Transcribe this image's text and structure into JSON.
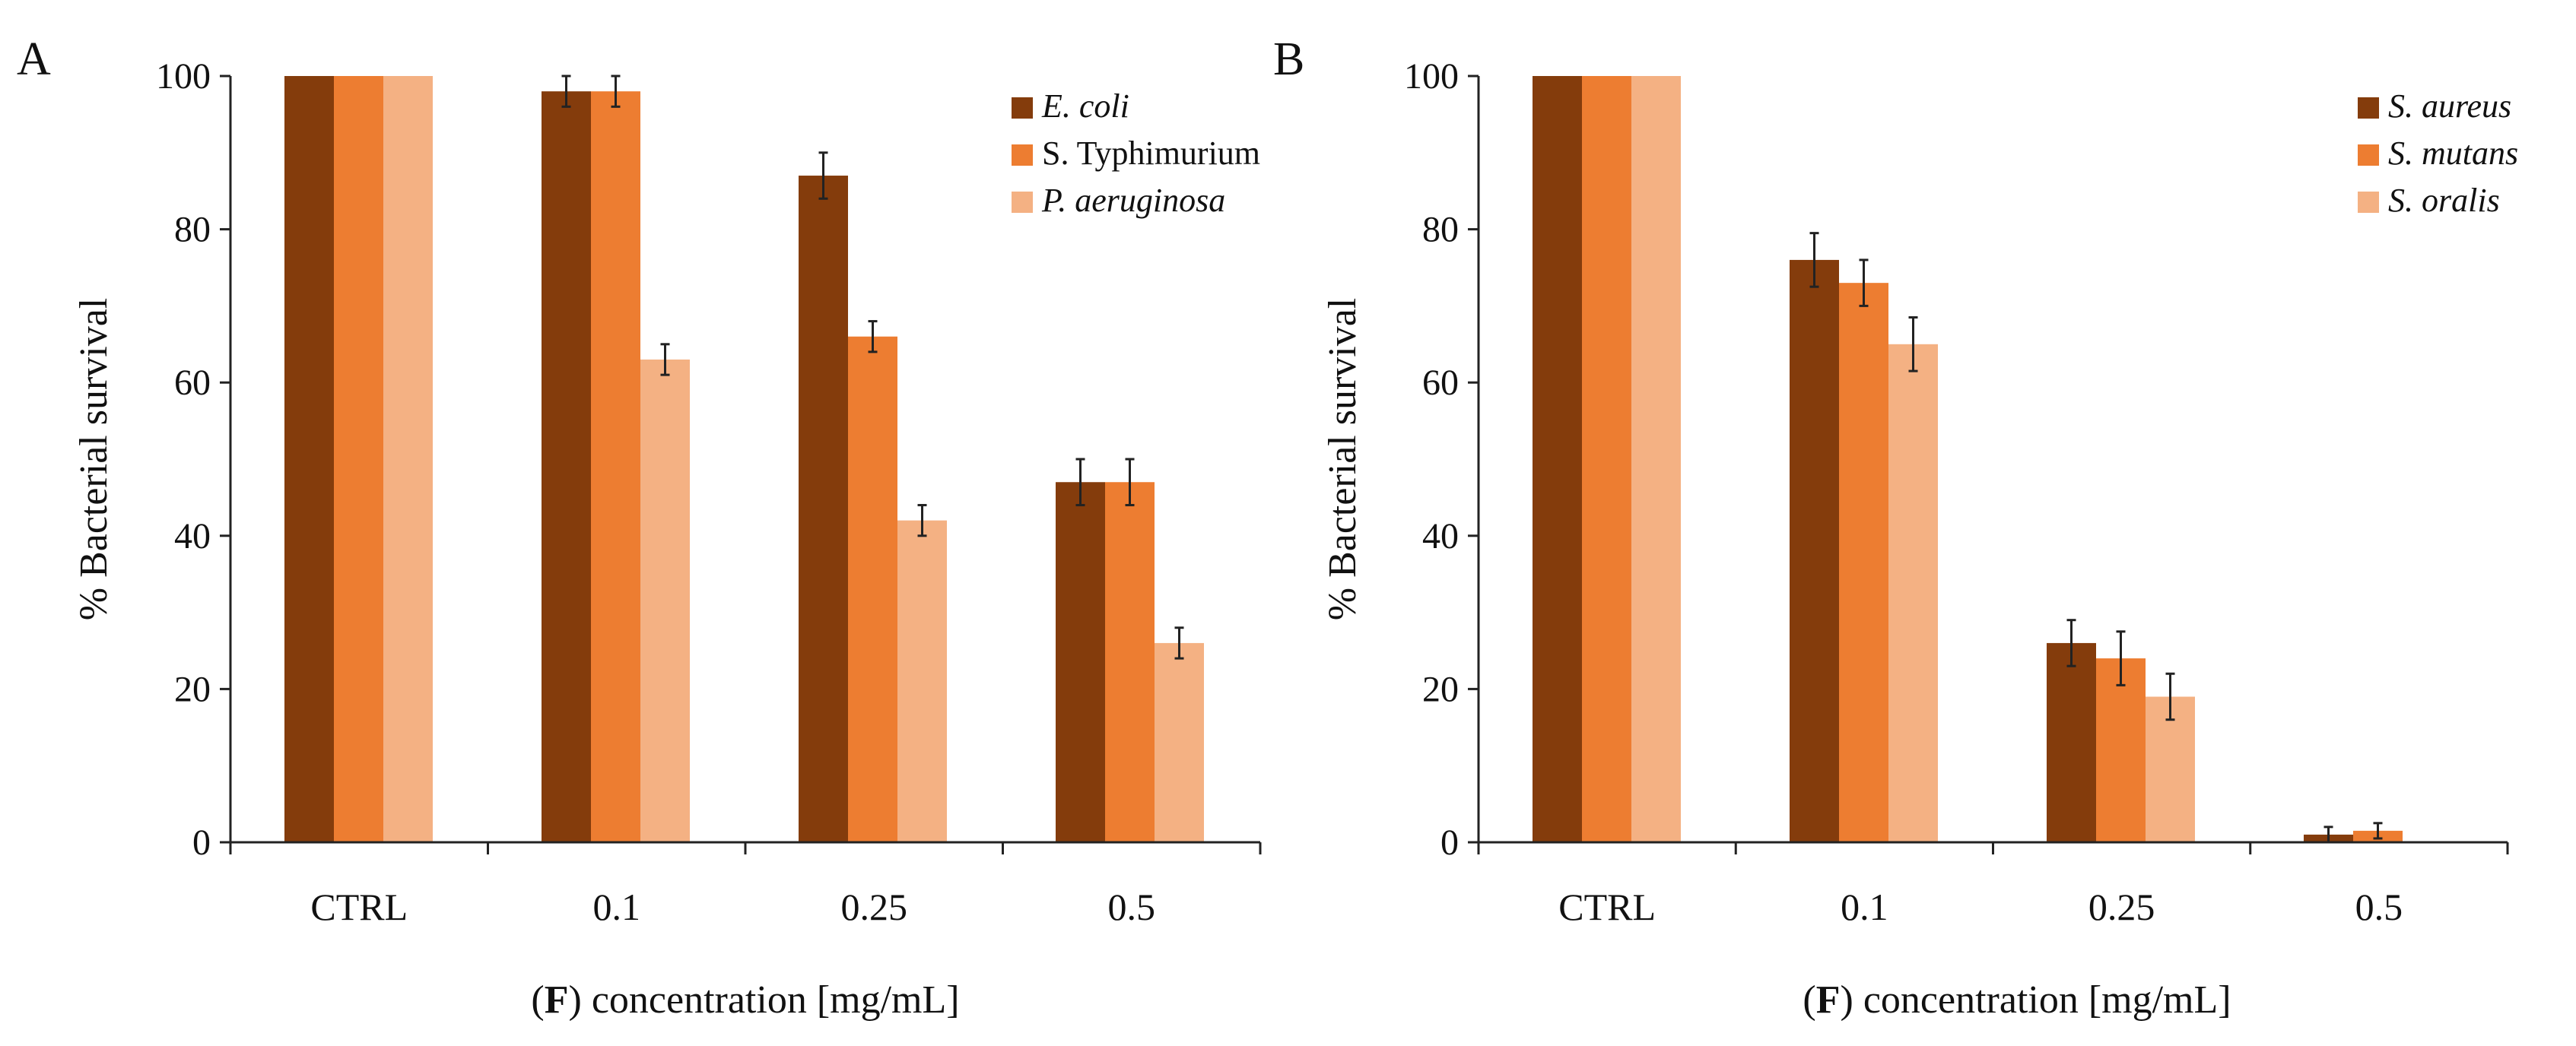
{
  "chart_data": [
    {
      "type": "bar",
      "panel": "A",
      "categories": [
        "CTRL",
        "0.1",
        "0.25",
        "0.5"
      ],
      "series": [
        {
          "name": "E. coli",
          "italic": true,
          "color": "#843c0c",
          "values": [
            100,
            98,
            87,
            47
          ],
          "errors": [
            0,
            2,
            3,
            3
          ]
        },
        {
          "name": "S. Typhimurium",
          "italic": false,
          "color": "#ed7d31",
          "values": [
            100,
            98,
            66,
            47
          ],
          "errors": [
            0,
            2,
            2,
            3
          ]
        },
        {
          "name": "P. aeruginosa",
          "italic": true,
          "color": "#f4b183",
          "values": [
            100,
            63,
            42,
            26
          ],
          "errors": [
            0,
            2,
            2,
            2
          ]
        }
      ],
      "ylabel": "% Bacterial survival",
      "xlabel_bold": "F",
      "xlabel_rest": " concentration [mg/mL]",
      "ylim": [
        0,
        100
      ],
      "yticks": [
        0,
        20,
        40,
        60,
        80,
        100
      ],
      "legend": "top-right"
    },
    {
      "type": "bar",
      "panel": "B",
      "categories": [
        "CTRL",
        "0.1",
        "0.25",
        "0.5"
      ],
      "series": [
        {
          "name": "S. aureus",
          "italic": true,
          "color": "#843c0c",
          "values": [
            100,
            76,
            26,
            1
          ],
          "errors": [
            0,
            3.5,
            3,
            1
          ]
        },
        {
          "name": "S. mutans",
          "italic": true,
          "color": "#ed7d31",
          "values": [
            100,
            73,
            24,
            1.5
          ],
          "errors": [
            0,
            3,
            3.5,
            1
          ]
        },
        {
          "name": "S. oralis",
          "italic": true,
          "color": "#f4b183",
          "values": [
            100,
            65,
            19,
            0
          ],
          "errors": [
            0,
            3.5,
            3,
            0
          ]
        }
      ],
      "ylabel": "% Bacterial survival",
      "xlabel_bold": "F",
      "xlabel_rest": " concentration [mg/mL]",
      "ylim": [
        0,
        100
      ],
      "yticks": [
        0,
        20,
        40,
        60,
        80,
        100
      ],
      "legend": "top-right"
    }
  ]
}
